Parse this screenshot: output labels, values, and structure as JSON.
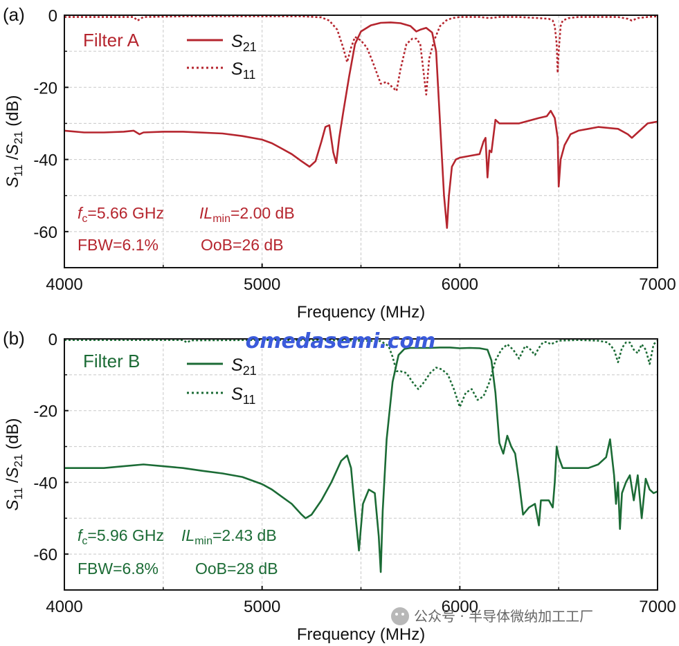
{
  "watermark": {
    "text": "omedasemi.com",
    "source": "公众号 · 半导体微纳加工工厂"
  },
  "colors": {
    "filter_a": "#b5252e",
    "filter_b": "#1b6b35",
    "grid": "#c8c8c8",
    "axis": "#111111"
  },
  "chart_data": [
    {
      "type": "line",
      "panel_label": "(a)",
      "filter_name": "Filter A",
      "xlabel": "Frequency (MHz)",
      "ylabel": "S11 / S21 (dB)",
      "ylabel_parts": {
        "s": "S",
        "sub1": "11",
        "slash": " /",
        "sub2": "21",
        "unit": " (dB)"
      },
      "xlim": [
        4000,
        7000
      ],
      "ylim": [
        -70,
        0
      ],
      "xticks": [
        "4000",
        "5000",
        "6000",
        "7000"
      ],
      "yticks": [
        "0",
        "-20",
        "-40",
        "-60"
      ],
      "xtick_values": [
        4000,
        5000,
        6000,
        7000
      ],
      "ytick_values": [
        0,
        -20,
        -40,
        -60
      ],
      "grid": true,
      "legend_position": "top-center",
      "annotations": {
        "fc_sym": "f",
        "fc_sub": "c",
        "fc_val": "=5.66 GHz",
        "il_sym": "IL",
        "il_sub": "min",
        "il_val": "=2.00 dB",
        "fbw": "FBW=6.1%",
        "oob": "OoB=26 dB"
      },
      "series": [
        {
          "name": "S21",
          "label_main": "S",
          "label_sub": "21",
          "style": "solid",
          "x": [
            4000,
            4100,
            4200,
            4300,
            4350,
            4380,
            4400,
            4500,
            4600,
            4800,
            4900,
            5000,
            5050,
            5100,
            5150,
            5200,
            5240,
            5270,
            5300,
            5320,
            5340,
            5360,
            5375,
            5390,
            5410,
            5440,
            5470,
            5500,
            5550,
            5600,
            5650,
            5700,
            5750,
            5780,
            5800,
            5830,
            5860,
            5880,
            5900,
            5920,
            5935,
            5945,
            5960,
            5980,
            6000,
            6050,
            6100,
            6120,
            6130,
            6140,
            6150,
            6160,
            6180,
            6200,
            6300,
            6400,
            6440,
            6460,
            6480,
            6495,
            6500,
            6510,
            6530,
            6560,
            6600,
            6650,
            6700,
            6800,
            6850,
            6870,
            6900,
            6950,
            7000
          ],
          "y": [
            -32,
            -32.5,
            -32.5,
            -32.3,
            -32,
            -33,
            -32.5,
            -32.3,
            -32.3,
            -32.8,
            -33.5,
            -34.5,
            -35.5,
            -37,
            -38.5,
            -40.5,
            -42,
            -40.5,
            -35,
            -31,
            -30.5,
            -38,
            -41,
            -34,
            -27,
            -17,
            -8,
            -4.5,
            -2.8,
            -2.1,
            -2,
            -2.2,
            -3,
            -4.5,
            -4,
            -3.5,
            -4.8,
            -10,
            -30,
            -50,
            -59,
            -50,
            -42,
            -40,
            -39.5,
            -39,
            -38.5,
            -35,
            -34,
            -45,
            -37.5,
            -38,
            -29,
            -30,
            -30,
            -28.5,
            -28,
            -26.5,
            -28.5,
            -34,
            -47.5,
            -40,
            -36,
            -33,
            -32,
            -31.5,
            -31,
            -31.5,
            -33,
            -34,
            -32.5,
            -30,
            -29.5
          ]
        },
        {
          "name": "S11",
          "label_main": "S",
          "label_sub": "11",
          "style": "dotted",
          "x": [
            4000,
            4350,
            4370,
            4390,
            4400,
            4600,
            4800,
            5000,
            5200,
            5300,
            5340,
            5380,
            5410,
            5430,
            5450,
            5470,
            5500,
            5530,
            5560,
            5600,
            5630,
            5660,
            5680,
            5700,
            5730,
            5760,
            5780,
            5800,
            5815,
            5830,
            5845,
            5870,
            5900,
            5930,
            5960,
            6000,
            6100,
            6150,
            6200,
            6300,
            6400,
            6450,
            6470,
            6480,
            6490,
            6495,
            6500,
            6510,
            6520,
            6550,
            6600,
            6700,
            6800,
            6850,
            6870,
            6900,
            6950,
            7000
          ],
          "y": [
            -0.5,
            -0.5,
            -1.5,
            -0.8,
            -0.5,
            -0.3,
            -0.3,
            -0.3,
            -0.3,
            -0.6,
            -1.5,
            -4,
            -9,
            -13,
            -9,
            -6,
            -7,
            -9,
            -13,
            -19,
            -18.5,
            -20,
            -21,
            -15,
            -8,
            -6.5,
            -6.5,
            -8,
            -15,
            -22,
            -12,
            -7,
            -3,
            -1.5,
            -0.8,
            -0.5,
            -0.5,
            -0.8,
            -0.5,
            -0.5,
            -0.8,
            -1,
            -1.5,
            -3,
            -8,
            -16,
            -10,
            -3,
            -1.5,
            -0.8,
            -0.5,
            -0.5,
            -0.5,
            -1,
            -1.5,
            -0.8,
            -0.5,
            -0.3
          ]
        }
      ]
    },
    {
      "type": "line",
      "panel_label": "(b)",
      "filter_name": "Filter B",
      "xlabel": "Frequency (MHz)",
      "ylabel": "S11 / S21 (dB)",
      "ylabel_parts": {
        "s": "S",
        "sub1": "11",
        "slash": " /",
        "sub2": "21",
        "unit": " (dB)"
      },
      "xlim": [
        4000,
        7000
      ],
      "ylim": [
        -70,
        0
      ],
      "xticks": [
        "4000",
        "5000",
        "6000",
        "7000"
      ],
      "yticks": [
        "0",
        "-20",
        "-40",
        "-60"
      ],
      "xtick_values": [
        4000,
        5000,
        6000,
        7000
      ],
      "ytick_values": [
        0,
        -20,
        -40,
        -60
      ],
      "grid": true,
      "legend_position": "top-center",
      "annotations": {
        "fc_sym": "f",
        "fc_sub": "c",
        "fc_val": "=5.96 GHz",
        "il_sym": "IL",
        "il_sub": "min",
        "il_val": "=2.43 dB",
        "fbw": "FBW=6.8%",
        "oob": "OoB=28 dB"
      },
      "series": [
        {
          "name": "S21",
          "label_main": "S",
          "label_sub": "21",
          "style": "solid",
          "x": [
            4000,
            4100,
            4200,
            4300,
            4400,
            4500,
            4600,
            4700,
            4800,
            4900,
            5000,
            5050,
            5100,
            5150,
            5200,
            5220,
            5250,
            5300,
            5350,
            5400,
            5430,
            5450,
            5470,
            5490,
            5510,
            5540,
            5570,
            5590,
            5600,
            5610,
            5630,
            5660,
            5690,
            5720,
            5750,
            5800,
            5850,
            5900,
            5950,
            6000,
            6050,
            6100,
            6140,
            6160,
            6180,
            6200,
            6220,
            6240,
            6260,
            6280,
            6300,
            6320,
            6350,
            6380,
            6400,
            6410,
            6420,
            6430,
            6440,
            6450,
            6470,
            6480,
            6490,
            6500,
            6520,
            6560,
            6600,
            6650,
            6700,
            6740,
            6760,
            6780,
            6790,
            6800,
            6810,
            6820,
            6840,
            6860,
            6880,
            6900,
            6920,
            6940,
            6960,
            6980,
            7000
          ],
          "y": [
            -36,
            -36,
            -36,
            -35.5,
            -35,
            -35.5,
            -36,
            -36.8,
            -37.5,
            -38.5,
            -40.5,
            -42,
            -44,
            -46,
            -49,
            -50,
            -49,
            -45,
            -40,
            -34,
            -32.5,
            -36,
            -48,
            -59,
            -46,
            -42,
            -43,
            -55,
            -65,
            -48,
            -28,
            -12,
            -4.5,
            -2.8,
            -2.5,
            -2.5,
            -2.5,
            -2.4,
            -2.4,
            -2.6,
            -2.5,
            -2.6,
            -3,
            -6,
            -15,
            -29,
            -32,
            -27,
            -30,
            -32,
            -40,
            -49,
            -47,
            -46,
            -52,
            -45,
            -45,
            -45,
            -45,
            -45,
            -47,
            -40,
            -30,
            -33,
            -36,
            -36,
            -36,
            -36,
            -35,
            -33,
            -28,
            -38,
            -46,
            -40,
            -53,
            -43,
            -40,
            -38,
            -45,
            -38,
            -50,
            -39,
            -42,
            -43,
            -42.5
          ],
          "note": "S21 Filter B"
        },
        {
          "name": "S11",
          "label_main": "S",
          "label_sub": "11",
          "style": "dotted",
          "x": [
            4000,
            4500,
            4600,
            4620,
            4640,
            5000,
            5400,
            5600,
            5640,
            5660,
            5680,
            5700,
            5730,
            5760,
            5790,
            5820,
            5850,
            5880,
            5910,
            5940,
            5970,
            6000,
            6030,
            6060,
            6090,
            6120,
            6150,
            6180,
            6210,
            6240,
            6270,
            6300,
            6330,
            6350,
            6380,
            6400,
            6420,
            6440,
            6460,
            6480,
            6500,
            6550,
            6600,
            6700,
            6750,
            6780,
            6800,
            6820,
            6840,
            6860,
            6880,
            6900,
            6920,
            6940,
            6960,
            6980,
            7000
          ],
          "y": [
            -0.3,
            -0.3,
            -0.3,
            -1,
            -0.4,
            -0.3,
            -0.4,
            -0.6,
            -2,
            -5,
            -9,
            -9,
            -9.5,
            -12,
            -14,
            -12,
            -9.5,
            -8,
            -8.5,
            -10,
            -14,
            -19,
            -15,
            -14,
            -17,
            -16,
            -12,
            -6,
            -3,
            -1.5,
            -3,
            -5.5,
            -2,
            -2.5,
            -4.5,
            -2.5,
            -1,
            -0.8,
            -1.5,
            -1,
            -0.5,
            -0.4,
            -0.3,
            -0.5,
            -1,
            -3,
            -6.5,
            -2.5,
            -1,
            -1,
            -3,
            -4,
            -1.5,
            -3,
            -7,
            -1.5,
            -0.5
          ]
        }
      ]
    }
  ]
}
